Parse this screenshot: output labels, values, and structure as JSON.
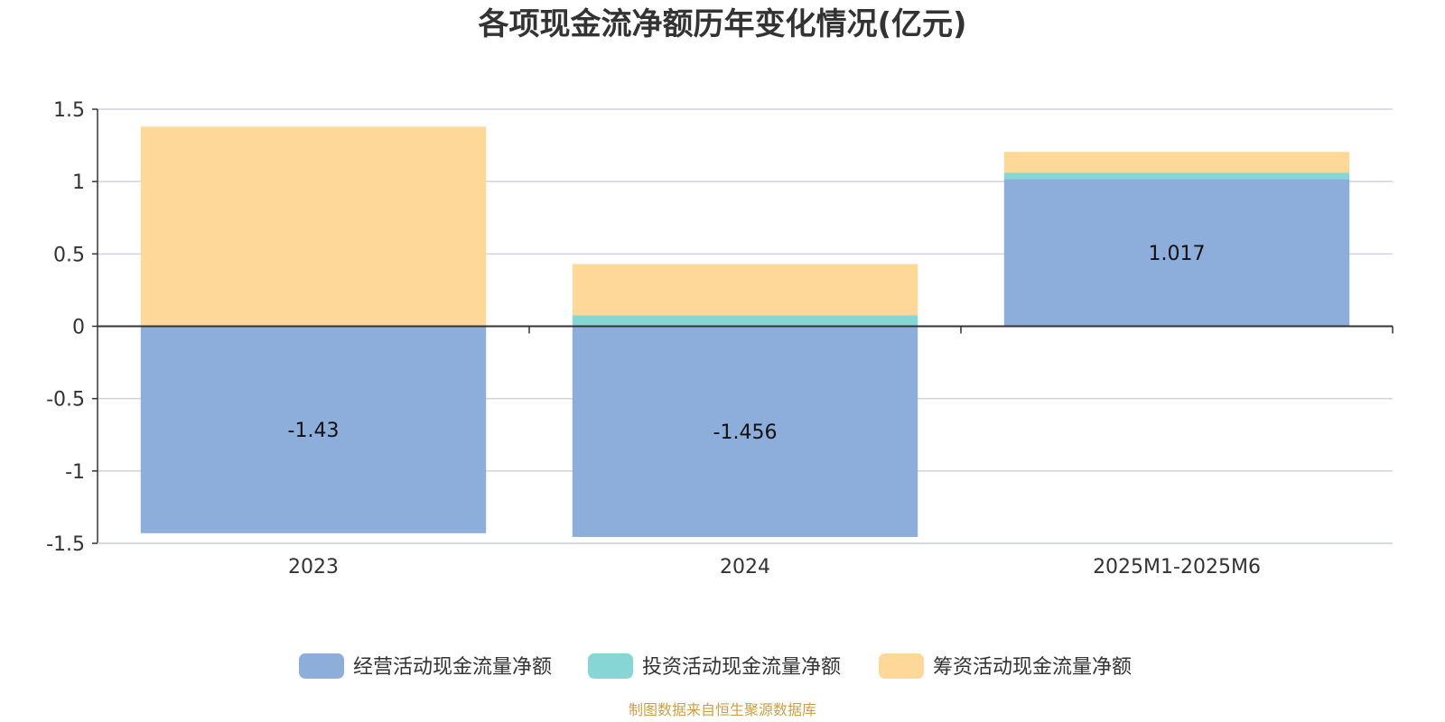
{
  "chart_data": {
    "type": "bar",
    "stacked": true,
    "title": "各项现金流净额历年变化情况(亿元)",
    "categories": [
      "2023",
      "2024",
      "2025M1-2025M6"
    ],
    "ylim": [
      -1.5,
      1.5
    ],
    "yticks": [
      1.5,
      1,
      0.5,
      0,
      -0.5,
      -1,
      -1.5
    ],
    "ytick_labels": [
      "1.5",
      "1",
      "0.5",
      "0",
      "-0.5",
      "-1",
      "-1.5"
    ],
    "grid": true,
    "legend_position": "bottom-center",
    "series": [
      {
        "name": "经营活动现金流量净额",
        "color": "#8daedb",
        "values": [
          -1.43,
          -1.456,
          1.017
        ],
        "labels": [
          "-1.43",
          "-1.456",
          "1.017"
        ]
      },
      {
        "name": "投资活动现金流量净额",
        "color": "#86d6d6",
        "values": [
          0.0,
          0.075,
          0.045
        ],
        "labels": [
          "",
          "",
          ""
        ]
      },
      {
        "name": "筹资活动现金流量净额",
        "color": "#fed898",
        "values": [
          1.38,
          0.355,
          0.143
        ],
        "labels": [
          "",
          "",
          ""
        ]
      }
    ],
    "source": "制图数据来自恒生聚源数据库"
  }
}
